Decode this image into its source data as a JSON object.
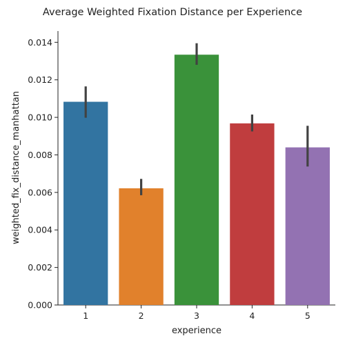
{
  "chart_data": {
    "type": "bar",
    "title": "Average Weighted Fixation Distance per Experience",
    "xlabel": "experience",
    "ylabel": "weighted_fix_distance_manhattan",
    "categories": [
      "1",
      "2",
      "3",
      "4",
      "5"
    ],
    "values": [
      0.01083,
      0.00622,
      0.01334,
      0.00968,
      0.0084
    ],
    "error_low": [
      0.00998,
      0.00585,
      0.0128,
      0.00925,
      0.00738
    ],
    "error_high": [
      0.01165,
      0.00672,
      0.01395,
      0.01015,
      0.00955
    ],
    "colors": [
      "#3274a1",
      "#e1812c",
      "#3a923a",
      "#c03d3e",
      "#9372b2"
    ],
    "error_color": "#424242",
    "ylim": [
      0,
      0.0146
    ],
    "yticks": [
      0,
      0.002,
      0.004,
      0.006,
      0.008,
      0.01,
      0.012,
      0.014
    ],
    "ytick_labels": [
      "0.000",
      "0.002",
      "0.004",
      "0.006",
      "0.008",
      "0.010",
      "0.012",
      "0.014"
    ],
    "grid": false,
    "legend": "none"
  }
}
